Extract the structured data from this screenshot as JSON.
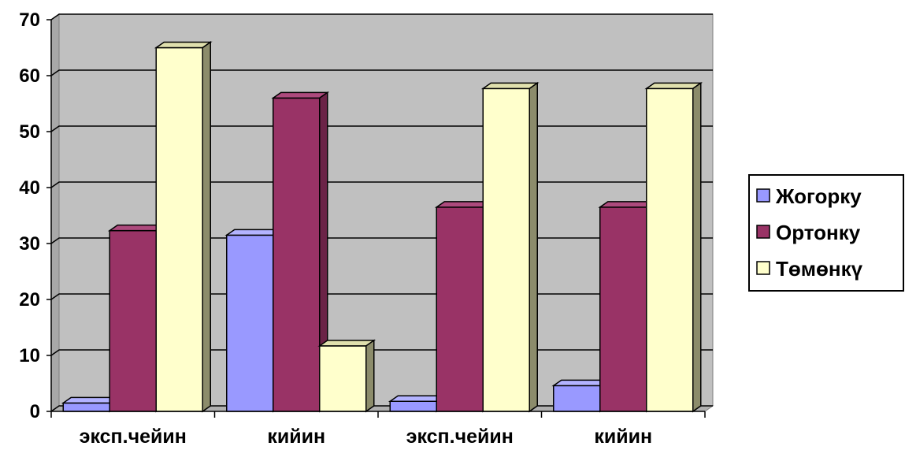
{
  "chart_data": {
    "type": "bar",
    "categories": [
      "эксп.чейин",
      "кийин",
      "эксп.чейин",
      "кийин"
    ],
    "series": [
      {
        "name": "Жогорку",
        "values": [
          1.5,
          31.5,
          1.8,
          4.6
        ],
        "color": "#9999ff",
        "side_color": "#6f6fbb",
        "top_color": "#b3b3ff"
      },
      {
        "name": "Ортонку",
        "values": [
          32.3,
          56.0,
          36.5,
          36.5
        ],
        "color": "#993366",
        "side_color": "#6b2347",
        "top_color": "#ad4a7d"
      },
      {
        "name": "Төмөнкү",
        "values": [
          65.0,
          11.7,
          57.7,
          57.7
        ],
        "color": "#ffffcc",
        "side_color": "#8c8c6b",
        "top_color": "#e0e0ad"
      }
    ],
    "ylim": [
      0,
      70
    ],
    "yticks": [
      0,
      10,
      20,
      30,
      40,
      50,
      60,
      70
    ],
    "grid": true,
    "plot_background": "#c0c0c0",
    "legend_position": "right"
  }
}
